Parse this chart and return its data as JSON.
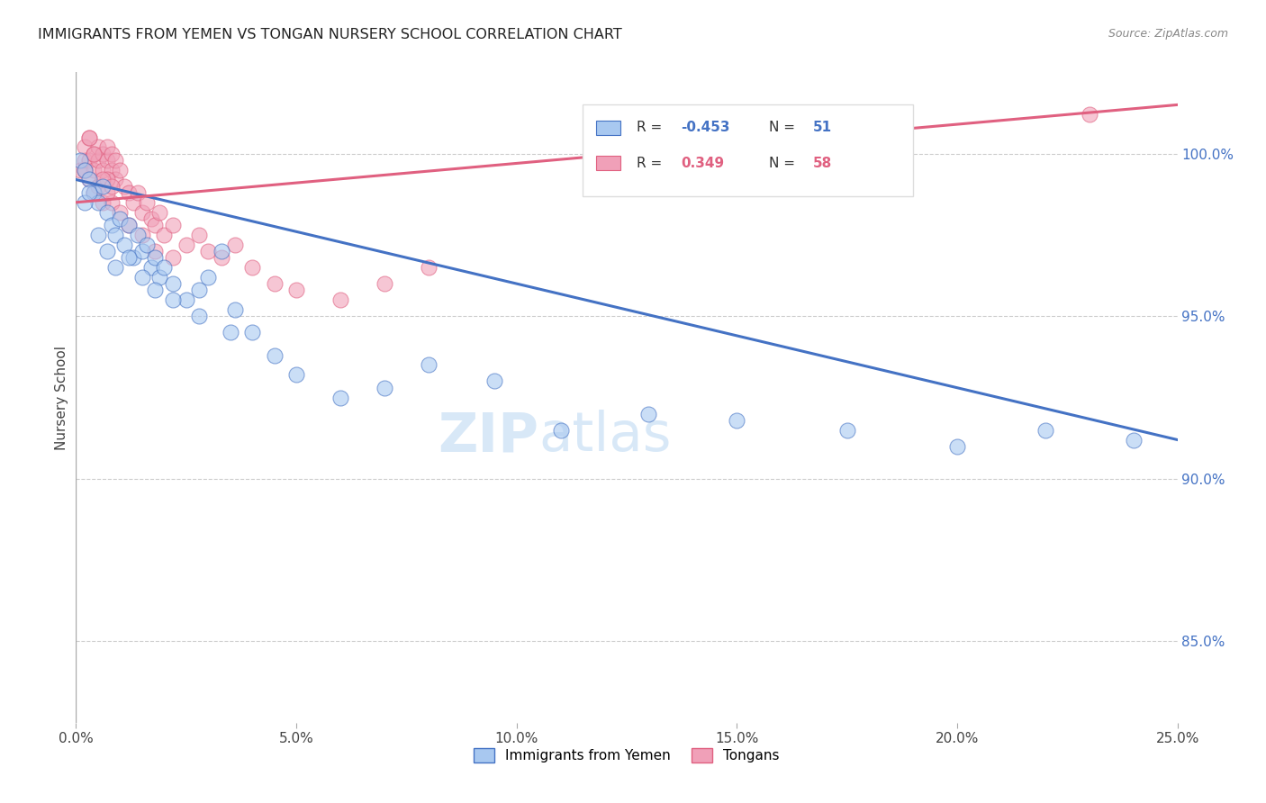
{
  "title": "IMMIGRANTS FROM YEMEN VS TONGAN NURSERY SCHOOL CORRELATION CHART",
  "source": "Source: ZipAtlas.com",
  "ylabel": "Nursery School",
  "yticks": [
    85.0,
    90.0,
    95.0,
    100.0
  ],
  "ytick_labels": [
    "85.0%",
    "90.0%",
    "95.0%",
    "100.0%"
  ],
  "xmin": 0.0,
  "xmax": 0.25,
  "ymin": 82.5,
  "ymax": 102.5,
  "color_blue": "#A8C8F0",
  "color_pink": "#F0A0B8",
  "color_line_blue": "#4472C4",
  "color_line_pink": "#E06080",
  "watermark_zip": "ZIP",
  "watermark_atlas": "atlas",
  "blue_scatter_x": [
    0.001,
    0.002,
    0.003,
    0.004,
    0.005,
    0.006,
    0.007,
    0.008,
    0.009,
    0.01,
    0.011,
    0.012,
    0.013,
    0.014,
    0.015,
    0.016,
    0.017,
    0.018,
    0.019,
    0.02,
    0.022,
    0.025,
    0.028,
    0.03,
    0.033,
    0.036,
    0.04,
    0.045,
    0.05,
    0.06,
    0.07,
    0.08,
    0.095,
    0.11,
    0.13,
    0.15,
    0.175,
    0.2,
    0.22,
    0.24,
    0.002,
    0.003,
    0.005,
    0.007,
    0.009,
    0.012,
    0.015,
    0.018,
    0.022,
    0.028,
    0.035
  ],
  "blue_scatter_y": [
    99.8,
    99.5,
    99.2,
    98.8,
    98.5,
    99.0,
    98.2,
    97.8,
    97.5,
    98.0,
    97.2,
    97.8,
    96.8,
    97.5,
    97.0,
    97.2,
    96.5,
    96.8,
    96.2,
    96.5,
    96.0,
    95.5,
    95.8,
    96.2,
    97.0,
    95.2,
    94.5,
    93.8,
    93.2,
    92.5,
    92.8,
    93.5,
    93.0,
    91.5,
    92.0,
    91.8,
    91.5,
    91.0,
    91.5,
    91.2,
    98.5,
    98.8,
    97.5,
    97.0,
    96.5,
    96.8,
    96.2,
    95.8,
    95.5,
    95.0,
    94.5
  ],
  "pink_scatter_x": [
    0.001,
    0.002,
    0.002,
    0.003,
    0.003,
    0.004,
    0.004,
    0.005,
    0.005,
    0.006,
    0.006,
    0.007,
    0.007,
    0.008,
    0.008,
    0.009,
    0.009,
    0.01,
    0.011,
    0.012,
    0.013,
    0.014,
    0.015,
    0.016,
    0.017,
    0.018,
    0.019,
    0.02,
    0.022,
    0.025,
    0.028,
    0.03,
    0.033,
    0.036,
    0.04,
    0.045,
    0.05,
    0.06,
    0.07,
    0.08,
    0.003,
    0.004,
    0.005,
    0.006,
    0.007,
    0.008,
    0.01,
    0.012,
    0.015,
    0.018,
    0.022,
    0.002,
    0.003,
    0.004,
    0.006,
    0.007,
    0.008,
    0.23
  ],
  "pink_scatter_y": [
    99.5,
    99.8,
    100.2,
    100.5,
    99.8,
    100.0,
    99.5,
    99.8,
    100.2,
    99.5,
    100.0,
    99.8,
    100.2,
    99.5,
    100.0,
    99.2,
    99.8,
    99.5,
    99.0,
    98.8,
    98.5,
    98.8,
    98.2,
    98.5,
    98.0,
    97.8,
    98.2,
    97.5,
    97.8,
    97.2,
    97.5,
    97.0,
    96.8,
    97.2,
    96.5,
    96.0,
    95.8,
    95.5,
    96.0,
    96.5,
    99.2,
    98.8,
    99.0,
    98.5,
    99.2,
    98.5,
    98.2,
    97.8,
    97.5,
    97.0,
    96.8,
    99.5,
    100.5,
    100.0,
    99.2,
    98.8,
    99.0,
    101.2
  ],
  "blue_trend_x": [
    0.0,
    0.25
  ],
  "blue_trend_y": [
    99.2,
    91.2
  ],
  "pink_trend_x": [
    0.0,
    0.25
  ],
  "pink_trend_y": [
    98.5,
    101.5
  ]
}
